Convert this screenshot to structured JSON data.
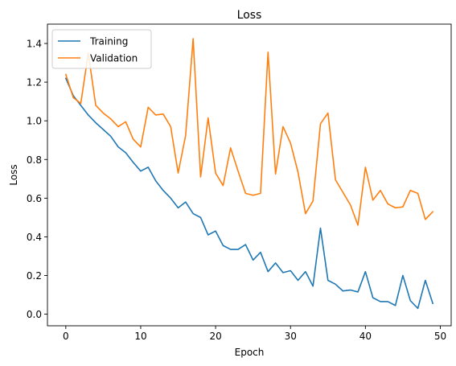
{
  "chart_data": {
    "type": "line",
    "title": "Loss",
    "xlabel": "Epoch",
    "ylabel": "Loss",
    "xlim": [
      -2.45,
      51.45
    ],
    "ylim": [
      -0.06,
      1.5
    ],
    "xticks": [
      0,
      10,
      20,
      30,
      40,
      50
    ],
    "yticks": [
      0.0,
      0.2,
      0.4,
      0.6,
      0.8,
      1.0,
      1.2,
      1.4
    ],
    "xtick_labels": [
      "0",
      "10",
      "20",
      "30",
      "40",
      "50"
    ],
    "ytick_labels": [
      "0.0",
      "0.2",
      "0.4",
      "0.6",
      "0.8",
      "1.0",
      "1.2",
      "1.4"
    ],
    "grid": false,
    "legend_position": "top-left",
    "x": [
      0,
      1,
      2,
      3,
      4,
      5,
      6,
      7,
      8,
      9,
      10,
      11,
      12,
      13,
      14,
      15,
      16,
      17,
      18,
      19,
      20,
      21,
      22,
      23,
      24,
      25,
      26,
      27,
      28,
      29,
      30,
      31,
      32,
      33,
      34,
      35,
      36,
      37,
      38,
      39,
      40,
      41,
      42,
      43,
      44,
      45,
      46,
      47,
      48,
      49
    ],
    "series": [
      {
        "name": "Training",
        "color": "#1f77b4",
        "values": [
          1.22,
          1.13,
          1.08,
          1.03,
          0.99,
          0.955,
          0.92,
          0.865,
          0.835,
          0.785,
          0.74,
          0.76,
          0.69,
          0.64,
          0.6,
          0.55,
          0.58,
          0.52,
          0.5,
          0.41,
          0.43,
          0.355,
          0.335,
          0.335,
          0.36,
          0.28,
          0.32,
          0.22,
          0.265,
          0.215,
          0.225,
          0.175,
          0.22,
          0.145,
          0.445,
          0.175,
          0.155,
          0.12,
          0.125,
          0.115,
          0.22,
          0.085,
          0.065,
          0.065,
          0.045,
          0.2,
          0.07,
          0.03,
          0.175,
          0.055
        ]
      },
      {
        "name": "Validation",
        "color": "#ff7f0e",
        "values": [
          1.24,
          1.12,
          1.09,
          1.35,
          1.08,
          1.04,
          1.01,
          0.97,
          0.995,
          0.905,
          0.865,
          1.07,
          1.03,
          1.035,
          0.97,
          0.73,
          0.925,
          1.425,
          0.71,
          1.015,
          0.73,
          0.665,
          0.86,
          0.74,
          0.625,
          0.615,
          0.625,
          1.355,
          0.725,
          0.97,
          0.885,
          0.735,
          0.52,
          0.585,
          0.985,
          1.04,
          0.695,
          0.63,
          0.565,
          0.46,
          0.76,
          0.59,
          0.64,
          0.57,
          0.55,
          0.555,
          0.64,
          0.625,
          0.49,
          0.53
        ]
      }
    ]
  }
}
